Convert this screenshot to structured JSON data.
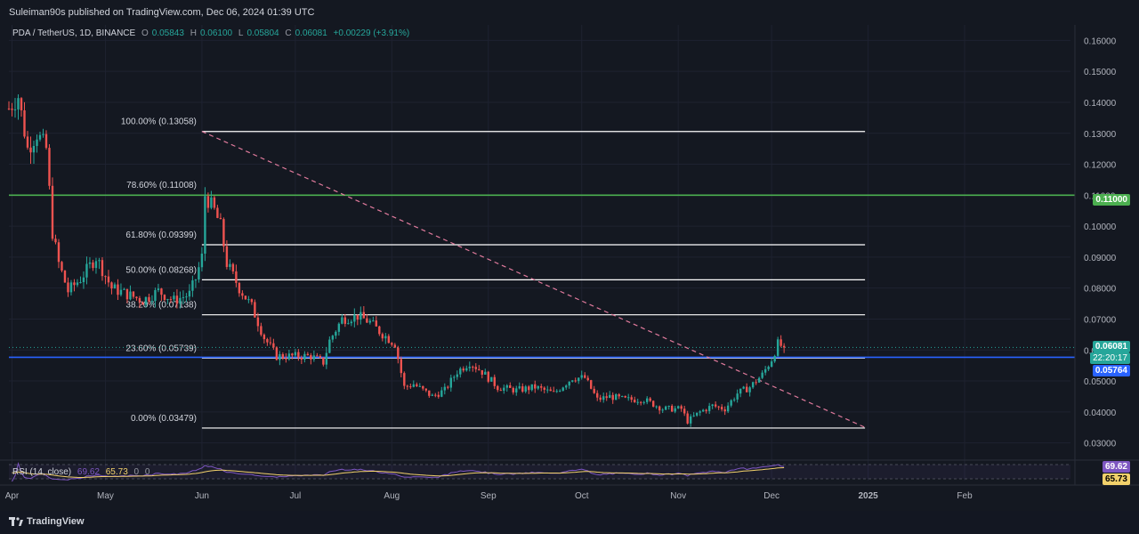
{
  "header": {
    "publisher": "Suleiman90s published on TradingView.com, Dec 06, 2024 01:39 UTC"
  },
  "legend": {
    "symbol": "PDA / TetherUS, 1D, BINANCE",
    "open_label": "O",
    "open": "0.05843",
    "high_label": "H",
    "high": "0.06100",
    "low_label": "L",
    "low": "0.05804",
    "close_label": "C",
    "close": "0.06081",
    "change": "+0.00229 (+3.91%)"
  },
  "rsi_legend": {
    "label": "RSI (14, close)",
    "value1": "69.62",
    "value2": "65.73",
    "zero1": "0",
    "zero2": "0"
  },
  "footer": {
    "brand": "TradingView"
  },
  "price_tags": {
    "resistance": "0.11000",
    "last_price": "0.06081",
    "countdown": "22:20:17",
    "support": "0.05764",
    "rsi1": "69.62",
    "rsi2": "65.73"
  },
  "colors": {
    "background": "#141821",
    "up": "#26a69a",
    "down": "#ef5350",
    "resistance": "#4caf50",
    "support": "#2962ff",
    "fib": "#ffffff",
    "trendline": "#e07a9c",
    "rsi": "#7e57c2",
    "rsi_ma": "#f2d16b"
  },
  "chart_data": {
    "type": "candlestick",
    "symbol": "PDA / TetherUS",
    "interval": "1D",
    "exchange": "BINANCE",
    "price_axis_ticks": [
      "0.16000",
      "0.15000",
      "0.14000",
      "0.13000",
      "0.12000",
      "0.11000",
      "0.10000",
      "0.09000",
      "0.08000",
      "0.07000",
      "0.06000",
      "0.05000",
      "0.04000",
      "0.03000"
    ],
    "time_axis_ticks": [
      "Apr",
      "May",
      "Jun",
      "Jul",
      "Aug",
      "Sep",
      "Oct",
      "Nov",
      "Dec",
      "2025",
      "Feb"
    ],
    "ylim": [
      0.025,
      0.165
    ],
    "fibonacci_levels": [
      {
        "label": "100.00% (0.13058)",
        "value": 0.13058
      },
      {
        "label": "78.60% (0.11008)",
        "value": 0.11008
      },
      {
        "label": "61.80% (0.09399)",
        "value": 0.09399
      },
      {
        "label": "50.00% (0.08268)",
        "value": 0.08268
      },
      {
        "label": "38.20% (0.07138)",
        "value": 0.07138
      },
      {
        "label": "23.60% (0.05739)",
        "value": 0.05739
      },
      {
        "label": "0.00% (0.03479)",
        "value": 0.03479
      }
    ],
    "horizontal_lines": [
      {
        "value": 0.11,
        "color": "#4caf50"
      },
      {
        "value": 0.05764,
        "color": "#2962ff"
      }
    ],
    "trendline": {
      "from": {
        "date": "2024-06-01",
        "value": 0.1306
      },
      "to": {
        "date": "2024-12-31",
        "value": 0.035
      }
    },
    "price_path": [
      {
        "date": "2024-03-31",
        "value": 0.138
      },
      {
        "date": "2024-04-03",
        "value": 0.142
      },
      {
        "date": "2024-04-06",
        "value": 0.125
      },
      {
        "date": "2024-04-09",
        "value": 0.13
      },
      {
        "date": "2024-04-12",
        "value": 0.125
      },
      {
        "date": "2024-04-14",
        "value": 0.098
      },
      {
        "date": "2024-04-16",
        "value": 0.088
      },
      {
        "date": "2024-04-19",
        "value": 0.079
      },
      {
        "date": "2024-04-23",
        "value": 0.083
      },
      {
        "date": "2024-04-28",
        "value": 0.09
      },
      {
        "date": "2024-05-03",
        "value": 0.08
      },
      {
        "date": "2024-05-08",
        "value": 0.078
      },
      {
        "date": "2024-05-13",
        "value": 0.076
      },
      {
        "date": "2024-05-18",
        "value": 0.079
      },
      {
        "date": "2024-05-23",
        "value": 0.076
      },
      {
        "date": "2024-05-28",
        "value": 0.078
      },
      {
        "date": "2024-05-30",
        "value": 0.083
      },
      {
        "date": "2024-06-01",
        "value": 0.09
      },
      {
        "date": "2024-06-02",
        "value": 0.11
      },
      {
        "date": "2024-06-05",
        "value": 0.105
      },
      {
        "date": "2024-06-07",
        "value": 0.1
      },
      {
        "date": "2024-06-09",
        "value": 0.088
      },
      {
        "date": "2024-06-13",
        "value": 0.08
      },
      {
        "date": "2024-06-17",
        "value": 0.074
      },
      {
        "date": "2024-06-21",
        "value": 0.064
      },
      {
        "date": "2024-06-25",
        "value": 0.058
      },
      {
        "date": "2024-07-01",
        "value": 0.058
      },
      {
        "date": "2024-07-06",
        "value": 0.058
      },
      {
        "date": "2024-07-10",
        "value": 0.056
      },
      {
        "date": "2024-07-12",
        "value": 0.063
      },
      {
        "date": "2024-07-16",
        "value": 0.07
      },
      {
        "date": "2024-07-21",
        "value": 0.071
      },
      {
        "date": "2024-07-25",
        "value": 0.069
      },
      {
        "date": "2024-07-28",
        "value": 0.066
      },
      {
        "date": "2024-08-02",
        "value": 0.062
      },
      {
        "date": "2024-08-05",
        "value": 0.048
      },
      {
        "date": "2024-08-08",
        "value": 0.049
      },
      {
        "date": "2024-08-14",
        "value": 0.045
      },
      {
        "date": "2024-08-18",
        "value": 0.047
      },
      {
        "date": "2024-08-22",
        "value": 0.053
      },
      {
        "date": "2024-08-26",
        "value": 0.056
      },
      {
        "date": "2024-08-30",
        "value": 0.053
      },
      {
        "date": "2024-09-04",
        "value": 0.048
      },
      {
        "date": "2024-09-10",
        "value": 0.047
      },
      {
        "date": "2024-09-16",
        "value": 0.048
      },
      {
        "date": "2024-09-22",
        "value": 0.046
      },
      {
        "date": "2024-09-28",
        "value": 0.051
      },
      {
        "date": "2024-10-02",
        "value": 0.051
      },
      {
        "date": "2024-10-06",
        "value": 0.044
      },
      {
        "date": "2024-10-10",
        "value": 0.045
      },
      {
        "date": "2024-10-15",
        "value": 0.044
      },
      {
        "date": "2024-10-21",
        "value": 0.044
      },
      {
        "date": "2024-10-27",
        "value": 0.041
      },
      {
        "date": "2024-11-02",
        "value": 0.041
      },
      {
        "date": "2024-11-04",
        "value": 0.037
      },
      {
        "date": "2024-11-08",
        "value": 0.04
      },
      {
        "date": "2024-11-12",
        "value": 0.042
      },
      {
        "date": "2024-11-16",
        "value": 0.041
      },
      {
        "date": "2024-11-20",
        "value": 0.046
      },
      {
        "date": "2024-11-24",
        "value": 0.048
      },
      {
        "date": "2024-11-28",
        "value": 0.052
      },
      {
        "date": "2024-12-01",
        "value": 0.057
      },
      {
        "date": "2024-12-03",
        "value": 0.062
      },
      {
        "date": "2024-12-05",
        "value": 0.0608
      }
    ],
    "rsi": {
      "length": 14,
      "source": "close",
      "value": 69.62,
      "ma": 65.73
    }
  }
}
